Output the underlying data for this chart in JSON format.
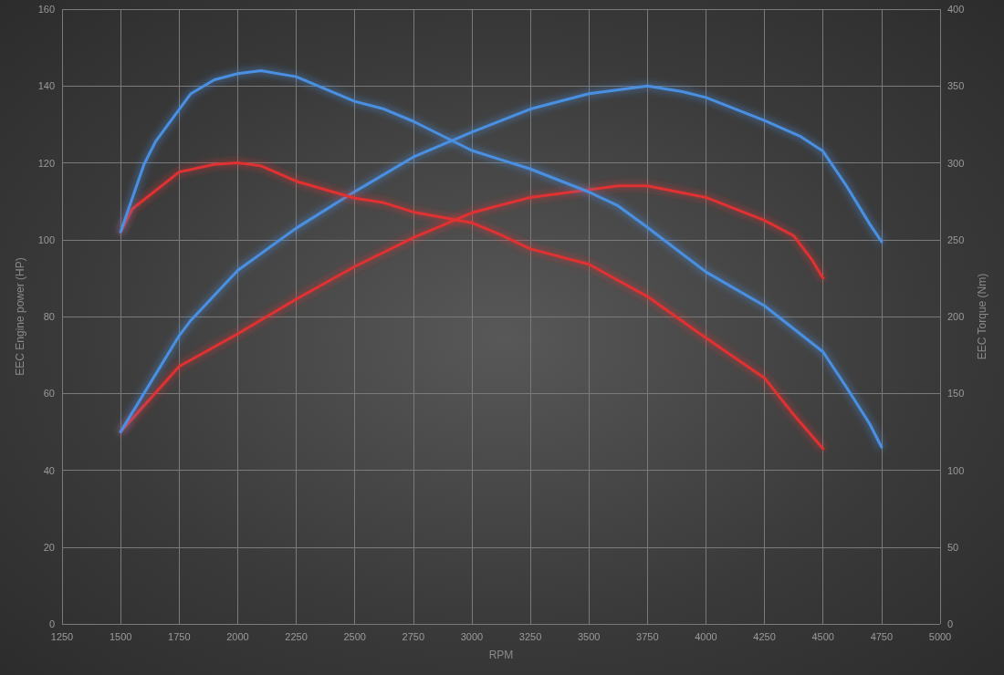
{
  "chart_data": {
    "type": "line",
    "xlabel": "RPM",
    "ylabel": "EEC Engine power (HP)",
    "y2label": "EEC Torque (Nm)",
    "xlim": [
      1250,
      5000
    ],
    "xticks": [
      1250,
      1500,
      1750,
      2000,
      2250,
      2500,
      2750,
      3000,
      3250,
      3500,
      3750,
      4000,
      4250,
      4500,
      4750,
      5000
    ],
    "ylim": [
      0,
      160
    ],
    "yticks": [
      0,
      20,
      40,
      60,
      80,
      100,
      120,
      140,
      160
    ],
    "y2lim": [
      0,
      400
    ],
    "y2ticks": [
      0,
      50,
      100,
      150,
      200,
      250,
      300,
      350,
      400
    ],
    "grid": true,
    "marker": "none",
    "line_style": "solid",
    "series": [
      {
        "color": "#e03030",
        "x": [
          1500,
          1750,
          2000,
          2250,
          2500,
          2750,
          3000,
          3250,
          3500,
          3625,
          3750,
          4000,
          4250,
          4375,
          4450,
          4500
        ],
        "values": [
          50,
          67,
          75.5,
          84.5,
          93,
          100.5,
          107,
          111,
          113,
          114,
          114,
          111,
          105,
          101,
          95,
          90
        ]
      },
      {
        "color": "#4a90e2",
        "x": [
          1500,
          1750,
          1800,
          2000,
          2250,
          2500,
          2750,
          3000,
          3250,
          3500,
          3750,
          3900,
          4000,
          4250,
          4400,
          4500,
          4600,
          4700,
          4750
        ],
        "values": [
          50,
          75,
          79,
          92,
          103,
          112.5,
          121.5,
          128,
          134,
          138,
          140,
          138.5,
          137,
          131,
          127,
          123,
          114,
          104,
          99.5
        ]
      },
      {
        "color": "#e03030",
        "axis": "y2",
        "x": [
          1500,
          1550,
          1750,
          1900,
          2000,
          2100,
          2250,
          2500,
          2625,
          2750,
          3000,
          3125,
          3250,
          3500,
          3750,
          4000,
          4250,
          4375,
          4500
        ],
        "values": [
          255,
          270,
          294,
          299,
          300,
          298,
          288,
          277,
          274,
          268,
          261,
          253,
          244,
          234,
          213,
          186,
          160,
          136,
          114
        ]
      },
      {
        "color": "#4a90e2",
        "axis": "y2",
        "x": [
          1500,
          1600,
          1650,
          1800,
          1900,
          2000,
          2100,
          2250,
          2500,
          2625,
          2750,
          3000,
          3125,
          3250,
          3500,
          3625,
          3750,
          4000,
          4250,
          4375,
          4500,
          4600,
          4700,
          4750
        ],
        "values": [
          255,
          299,
          314,
          345,
          354,
          358,
          360,
          356,
          340,
          335,
          327,
          308,
          302,
          296,
          281,
          272,
          258,
          229,
          207,
          192,
          177,
          154,
          130,
          115
        ]
      }
    ]
  }
}
